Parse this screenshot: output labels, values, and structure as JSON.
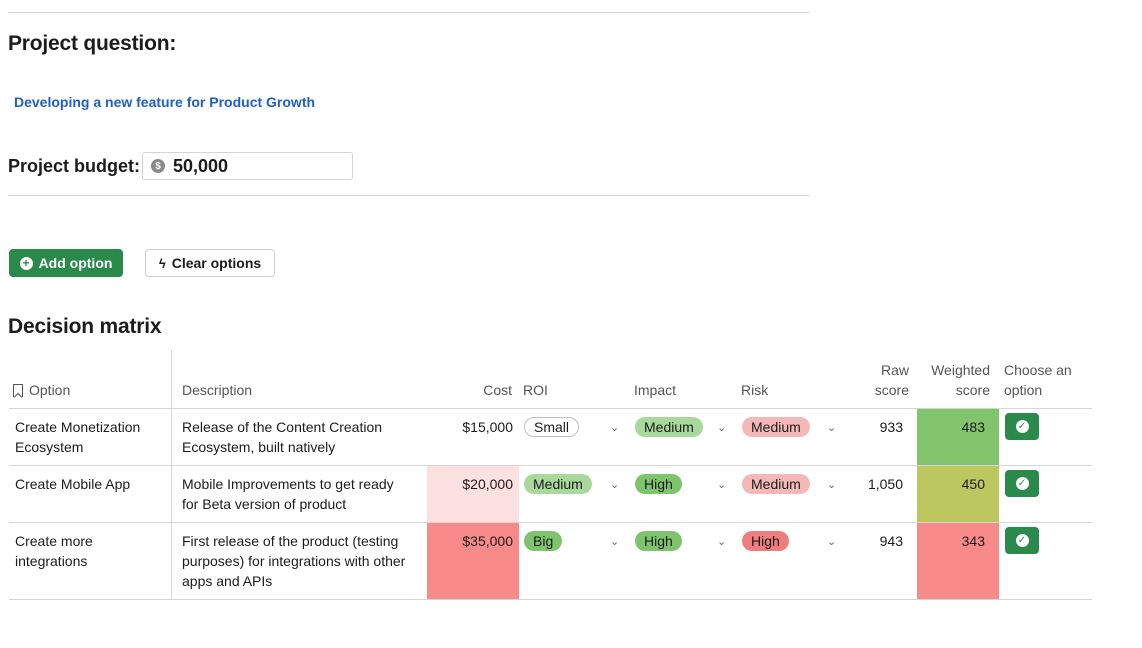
{
  "project": {
    "question_heading": "Project question:",
    "question_link": "Developing a new feature for Product Growth",
    "budget_label": "Project budget:",
    "budget_currency_icon": "$",
    "budget_value": "50,000"
  },
  "actions": {
    "add_option_label": "Add option",
    "clear_options_label": "Clear options"
  },
  "matrix": {
    "title": "Decision matrix",
    "columns": {
      "option": "Option",
      "description": "Description",
      "cost": "Cost",
      "roi": "ROI",
      "impact": "Impact",
      "risk": "Risk",
      "raw_score_1": "Raw",
      "raw_score_2": "score",
      "weighted_1": "Weighted",
      "weighted_2": "score",
      "choose_1": "Choose an",
      "choose_2": "option"
    },
    "rows": [
      {
        "option_1": "Create Monetization",
        "option_2": "Ecosystem",
        "desc_1": "Release of the Content Creation",
        "desc_2": "Ecosystem, built natively",
        "desc_3": "",
        "cost": "$15,000",
        "roi": "Small",
        "impact": "Medium",
        "risk": "Medium",
        "raw_score": "933",
        "weighted_score": "483"
      },
      {
        "option_1": "Create Mobile App",
        "option_2": "",
        "desc_1": "Mobile Improvements to get ready",
        "desc_2": "for Beta version of product",
        "desc_3": "",
        "cost": "$20,000",
        "roi": "Medium",
        "impact": "High",
        "risk": "Medium",
        "raw_score": "1,050",
        "weighted_score": "450"
      },
      {
        "option_1": "Create more",
        "option_2": "integrations",
        "desc_1": "First release of the product (testing",
        "desc_2": "purposes) for integrations with other",
        "desc_3": "apps and APIs",
        "cost": "$35,000",
        "roi": "Big",
        "impact": "High",
        "risk": "High",
        "raw_score": "943",
        "weighted_score": "343"
      }
    ]
  },
  "colors": {
    "accent_green": "#2a8a4c",
    "link_blue": "#1d5ec9",
    "score_high": "#82c46c",
    "score_mid": "#bcc75f",
    "score_low": "#f88a8a",
    "cost_light": "#fde0e0",
    "cost_strong": "#f88a8a"
  }
}
